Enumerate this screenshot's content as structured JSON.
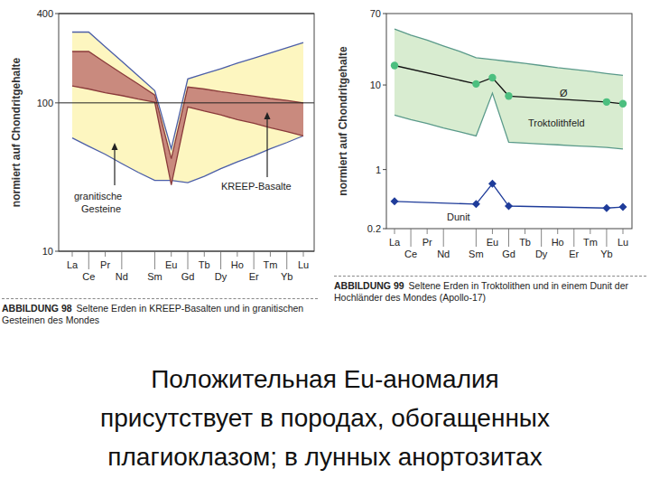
{
  "chart_data": [
    {
      "type": "band",
      "title_prefix": "ABBILDUNG 98",
      "title": "Seltene Erden in KREEP-Basalten und in granitischen Gesteinen des Mondes",
      "y_label": "normiert auf Chondritgehalte",
      "categories": [
        "La",
        "Ce",
        "Pr",
        "Nd",
        null,
        "Sm",
        "Eu",
        "Gd",
        "Tb",
        "Dy",
        "Ho",
        "Er",
        "Tm",
        "Yb",
        "Lu"
      ],
      "log": "y",
      "grid": true,
      "ylim": [
        10,
        400
      ],
      "yticks": [
        10,
        100,
        400
      ],
      "series": [
        {
          "name": "granitische Gesteine",
          "type": "band",
          "color": "#fdf6c0",
          "low": [
            58,
            51,
            45,
            39,
            34,
            30,
            30,
            29,
            32,
            36,
            40,
            44,
            49,
            54,
            60
          ],
          "high": [
            300,
            300,
            239,
            191,
            152,
            121,
            49,
            145,
            157,
            170,
            185,
            200,
            217,
            235,
            255
          ]
        },
        {
          "name": "KREEP-Basalte",
          "type": "band",
          "color": "#c98a7e",
          "low": [
            130,
            124,
            117,
            112,
            106,
            101,
            28,
            94,
            88,
            83,
            77,
            73,
            68,
            64,
            60
          ],
          "high": [
            222,
            222,
            187,
            158,
            134,
            113,
            42,
            128,
            124,
            119,
            115,
            111,
            107,
            104,
            100
          ]
        }
      ]
    },
    {
      "type": "line",
      "title_prefix": "ABBILDUNG 99",
      "title": "Seltene Erden in Troktolithen und in einem Dunit der Hochländer des Mondes (Apollo-17)",
      "y_label": "normiert auf Chondritgehalte",
      "categories": [
        "La",
        "Ce",
        "Pr",
        "Nd",
        null,
        "Sm",
        "Eu",
        "Gd",
        "Tb",
        "Dy",
        "Ho",
        "Er",
        "Tm",
        "Yb",
        "Lu"
      ],
      "log": "y",
      "grid": false,
      "ylim": [
        0.2,
        70
      ],
      "yticks": [
        0.2,
        1,
        10,
        70
      ],
      "series": [
        {
          "name": "Troktolithfeld",
          "type": "band",
          "color": "#d8ecd0",
          "low": [
            4.4,
            3.9,
            3.5,
            3.1,
            2.8,
            2.5,
            8,
            2.1,
            2.05,
            2.0,
            1.96,
            1.91,
            1.87,
            1.83,
            1.75
          ],
          "high": [
            46,
            39,
            34,
            29,
            25,
            21,
            20,
            19,
            18,
            17,
            16,
            15.3,
            14.5,
            13.7,
            13
          ]
        },
        {
          "name": "Ø",
          "type": "line",
          "color": "#4cbf7f",
          "marker": "circle",
          "x": [
            "La",
            "Sm",
            "Eu",
            "Gd",
            "Yb",
            "Lu"
          ],
          "values": [
            17,
            10.3,
            12.2,
            7.4,
            6.3,
            6.0
          ]
        },
        {
          "name": "Dunit",
          "type": "line",
          "color": "#1f3c9a",
          "marker": "diamond",
          "x": [
            "La",
            "Sm",
            "Eu",
            "Gd",
            "Yb",
            "Lu"
          ],
          "values": [
            0.42,
            0.39,
            0.68,
            0.37,
            0.35,
            0.36
          ]
        }
      ]
    }
  ],
  "slide_text": [
    "Положительная Eu-аномалия",
    "присутствует в породах, обогащенных",
    "плагиоклазом; в лунных анортозитах"
  ]
}
